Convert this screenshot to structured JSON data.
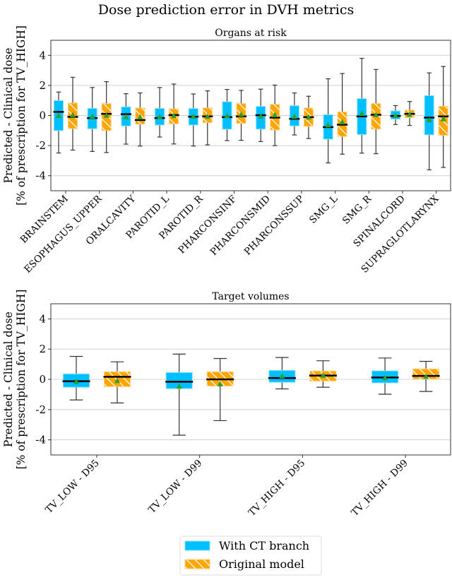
{
  "title": "Dose prediction error in DVH metrics",
  "ylabel_line1": "Predicted - Clinical dose",
  "ylabel_line2": "[% of prescription for TV_HIGH]",
  "colors": {
    "with_ct": "#00BFFF",
    "original": "#FFA500",
    "mean_marker": "#2CA02C",
    "median": "#000000"
  },
  "legend": {
    "placement": "bottom-center",
    "entries": [
      "With CT branch",
      "Original model"
    ]
  },
  "chart_data": [
    {
      "type": "box",
      "title": "Organs at risk",
      "ylim": [
        -5,
        5
      ],
      "yticks": [
        -4,
        -2,
        0,
        2,
        4
      ],
      "grid": "y",
      "categories": [
        "BRAINSTEM",
        "ESOPHAGUS_UPPER",
        "ORALCAVITY",
        "PAROTID_L",
        "PAROTID_R",
        "PHARCONSINF",
        "PHARCONSMID",
        "PHARCONSSUP",
        "SMG_L",
        "SMG_R",
        "SPINALCORD",
        "SUPRAGLOTLARYNX"
      ],
      "series": [
        {
          "name": "With CT branch",
          "stats_order": [
            "whisker_low",
            "q1",
            "median",
            "q3",
            "whisker_high",
            "mean"
          ],
          "values": [
            [
              -2.49,
              -1.0,
              0.24,
              0.99,
              1.56,
              0.0
            ],
            [
              -2.39,
              -0.88,
              -0.17,
              0.47,
              1.86,
              -0.05
            ],
            [
              -1.9,
              -0.69,
              0.09,
              0.57,
              1.45,
              -0.08
            ],
            [
              -1.43,
              -0.63,
              -0.17,
              0.47,
              1.86,
              -0.08
            ],
            [
              -2.03,
              -0.63,
              -0.08,
              0.46,
              1.43,
              -0.05
            ],
            [
              -1.67,
              -0.91,
              -0.11,
              0.91,
              1.73,
              0.0
            ],
            [
              -1.73,
              -0.9,
              0.02,
              0.6,
              1.75,
              -0.05
            ],
            [
              -1.29,
              -0.69,
              -0.22,
              0.65,
              1.5,
              -0.05
            ],
            [
              -3.15,
              -1.57,
              -0.77,
              0.05,
              2.44,
              -0.62
            ],
            [
              -2.5,
              -1.26,
              -0.06,
              1.12,
              3.8,
              0.14
            ],
            [
              -0.6,
              -0.24,
              -0.03,
              0.3,
              0.66,
              0.0
            ],
            [
              -3.61,
              -1.28,
              -0.14,
              1.32,
              2.83,
              -0.28
            ]
          ]
        },
        {
          "name": "Original model",
          "stats_order": [
            "whisker_low",
            "q1",
            "median",
            "q3",
            "whisker_high",
            "mean"
          ],
          "values": [
            [
              -2.3,
              -0.87,
              -0.09,
              0.83,
              2.54,
              0.05
            ],
            [
              -2.46,
              -1.0,
              0.11,
              0.79,
              2.25,
              0.02
            ],
            [
              -2.03,
              -0.58,
              -0.3,
              0.5,
              1.5,
              -0.1
            ],
            [
              -1.89,
              -0.55,
              0.03,
              0.44,
              2.09,
              0.0
            ],
            [
              -1.95,
              -0.47,
              -0.06,
              0.5,
              1.64,
              -0.05
            ],
            [
              -1.65,
              -0.52,
              -0.06,
              0.79,
              1.67,
              0.08
            ],
            [
              -2.0,
              -0.96,
              -0.14,
              0.74,
              2.02,
              0.05
            ],
            [
              -1.53,
              -0.72,
              -0.11,
              0.5,
              1.28,
              -0.1
            ],
            [
              -2.57,
              -1.39,
              -0.61,
              0.24,
              2.79,
              -0.42
            ],
            [
              -2.54,
              -0.9,
              0.05,
              0.79,
              3.06,
              0.06
            ],
            [
              -0.66,
              -0.14,
              0.11,
              0.36,
              0.93,
              0.08
            ],
            [
              -3.45,
              -1.32,
              -0.06,
              0.61,
              3.26,
              -0.22
            ]
          ]
        }
      ]
    },
    {
      "type": "box",
      "title": "Target volumes",
      "ylim": [
        -5,
        5
      ],
      "yticks": [
        -4,
        -2,
        0,
        2,
        4
      ],
      "grid": "y",
      "categories": [
        "TV_LOW - D95",
        "TV_LOW - D99",
        "TV_HIGH - D95",
        "TV_HIGH - D99"
      ],
      "series": [
        {
          "name": "With CT branch",
          "stats_order": [
            "whisker_low",
            "q1",
            "median",
            "q3",
            "whisker_high",
            "mean"
          ],
          "values": [
            [
              -1.36,
              -0.52,
              -0.12,
              0.36,
              1.52,
              -0.14
            ],
            [
              -3.69,
              -0.61,
              -0.16,
              0.45,
              1.67,
              -0.45
            ],
            [
              -0.63,
              -0.19,
              0.09,
              0.59,
              1.45,
              0.22
            ],
            [
              -0.98,
              -0.23,
              0.12,
              0.56,
              1.41,
              0.11
            ]
          ]
        },
        {
          "name": "Original model",
          "stats_order": [
            "whisker_low",
            "q1",
            "median",
            "q3",
            "whisker_high",
            "mean"
          ],
          "values": [
            [
              -1.56,
              -0.48,
              0.17,
              0.5,
              1.16,
              -0.08
            ],
            [
              -2.73,
              -0.44,
              0.0,
              0.5,
              1.38,
              -0.3
            ],
            [
              -0.52,
              -0.11,
              0.25,
              0.55,
              1.23,
              0.27
            ],
            [
              -0.8,
              0.02,
              0.23,
              0.69,
              1.19,
              0.2
            ]
          ]
        }
      ]
    }
  ]
}
